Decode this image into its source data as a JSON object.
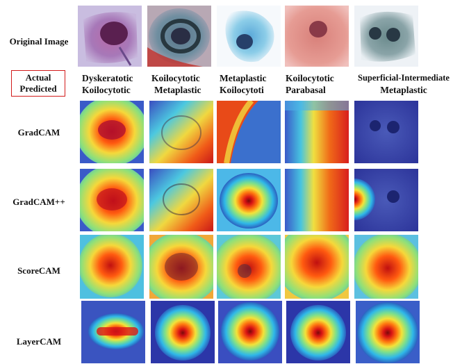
{
  "row_labels": {
    "original": "Original Image",
    "gradcam": "GradCAM",
    "gradcampp": "GradCAM++",
    "scorecam": "ScoreCAM",
    "layercam": "LayerCAM"
  },
  "legend": {
    "actual": "Actual",
    "predicted": "Predicted"
  },
  "columns": [
    {
      "actual": "Dyskeratotic",
      "predicted": "Koilocytotic"
    },
    {
      "actual": "Koilocytotic",
      "predicted": "Metaplastic"
    },
    {
      "actual": "Metaplastic",
      "predicted": "Koilocytoti"
    },
    {
      "actual": "Koilocytotic",
      "predicted": "Parabasal"
    },
    {
      "actual": "Superficial-Intermediate",
      "predicted": "Metaplastic"
    }
  ]
}
